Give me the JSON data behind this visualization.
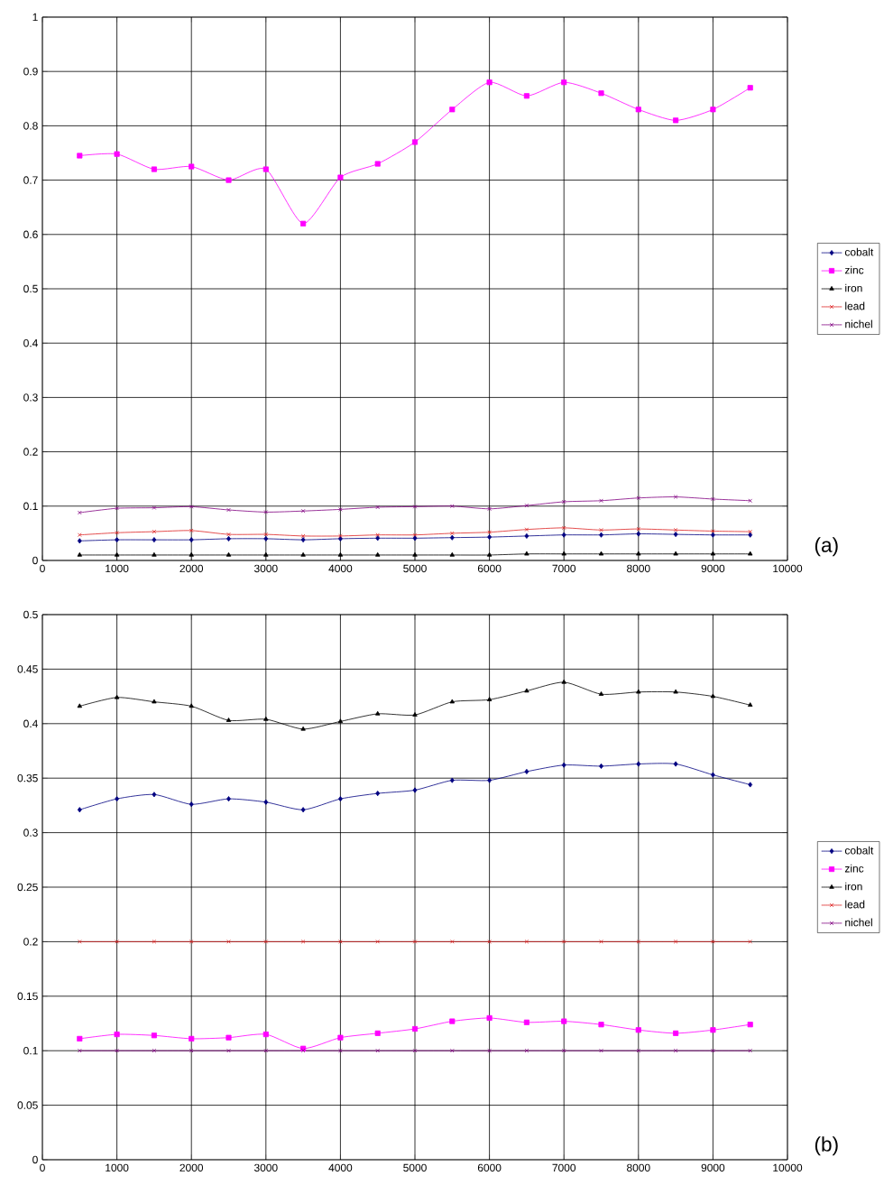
{
  "chart_data": [
    {
      "type": "line",
      "x": [
        500,
        1000,
        1500,
        2000,
        2500,
        3000,
        3500,
        4000,
        4500,
        5000,
        5500,
        6000,
        6500,
        7000,
        7500,
        8000,
        8500,
        9000,
        9500
      ],
      "xlim": [
        0,
        10000
      ],
      "xticks": [
        0,
        1000,
        2000,
        3000,
        4000,
        5000,
        6000,
        7000,
        8000,
        9000,
        10000
      ],
      "ylim": [
        0,
        1
      ],
      "yticks": [
        0,
        0.1,
        0.2,
        0.3,
        0.4,
        0.5,
        0.6,
        0.7,
        0.8,
        0.9,
        1
      ],
      "grid": true,
      "legend": "right",
      "annotations": [
        "(a)"
      ],
      "series": [
        {
          "name": "cobalt",
          "color": "#000080",
          "marker": "diamond",
          "values": [
            0.036,
            0.038,
            0.038,
            0.038,
            0.04,
            0.04,
            0.038,
            0.04,
            0.041,
            0.041,
            0.042,
            0.043,
            0.045,
            0.047,
            0.047,
            0.049,
            0.048,
            0.047,
            0.047
          ]
        },
        {
          "name": "zinc",
          "color": "#ff00ff",
          "marker": "square",
          "values": [
            0.745,
            0.748,
            0.72,
            0.725,
            0.7,
            0.72,
            0.62,
            0.705,
            0.73,
            0.77,
            0.83,
            0.88,
            0.855,
            0.88,
            0.86,
            0.83,
            0.81,
            0.83,
            0.87
          ]
        },
        {
          "name": "iron",
          "color": "#000000",
          "marker": "triangle",
          "values": [
            0.01,
            0.01,
            0.01,
            0.01,
            0.01,
            0.01,
            0.01,
            0.01,
            0.01,
            0.01,
            0.01,
            0.01,
            0.012,
            0.012,
            0.012,
            0.012,
            0.012,
            0.012,
            0.012
          ]
        },
        {
          "name": "lead",
          "color": "#dd2222",
          "marker": "cross",
          "values": [
            0.047,
            0.051,
            0.053,
            0.055,
            0.048,
            0.048,
            0.045,
            0.045,
            0.047,
            0.047,
            0.05,
            0.052,
            0.057,
            0.06,
            0.056,
            0.058,
            0.056,
            0.054,
            0.053
          ]
        },
        {
          "name": "nichel",
          "color": "#800080",
          "marker": "cross",
          "values": [
            0.088,
            0.096,
            0.097,
            0.099,
            0.093,
            0.089,
            0.091,
            0.094,
            0.098,
            0.099,
            0.1,
            0.095,
            0.101,
            0.108,
            0.11,
            0.115,
            0.117,
            0.113,
            0.11
          ]
        }
      ]
    },
    {
      "type": "line",
      "x": [
        500,
        1000,
        1500,
        2000,
        2500,
        3000,
        3500,
        4000,
        4500,
        5000,
        5500,
        6000,
        6500,
        7000,
        7500,
        8000,
        8500,
        9000,
        9500
      ],
      "xlim": [
        0,
        10000
      ],
      "xticks": [
        0,
        1000,
        2000,
        3000,
        4000,
        5000,
        6000,
        7000,
        8000,
        9000,
        10000
      ],
      "ylim": [
        0,
        0.5
      ],
      "yticks": [
        0,
        0.05,
        0.1,
        0.15,
        0.2,
        0.25,
        0.3,
        0.35,
        0.4,
        0.45,
        0.5
      ],
      "grid": true,
      "legend": "right",
      "annotations": [
        "(b)"
      ],
      "series": [
        {
          "name": "cobalt",
          "color": "#000080",
          "marker": "diamond",
          "values": [
            0.321,
            0.331,
            0.335,
            0.326,
            0.331,
            0.328,
            0.321,
            0.331,
            0.336,
            0.339,
            0.348,
            0.348,
            0.356,
            0.362,
            0.361,
            0.363,
            0.363,
            0.353,
            0.344
          ]
        },
        {
          "name": "zinc",
          "color": "#ff00ff",
          "marker": "square",
          "values": [
            0.111,
            0.115,
            0.114,
            0.111,
            0.112,
            0.115,
            0.102,
            0.112,
            0.116,
            0.12,
            0.127,
            0.13,
            0.126,
            0.127,
            0.124,
            0.119,
            0.116,
            0.119,
            0.124
          ]
        },
        {
          "name": "iron",
          "color": "#000000",
          "marker": "triangle",
          "values": [
            0.416,
            0.424,
            0.42,
            0.416,
            0.403,
            0.404,
            0.395,
            0.402,
            0.409,
            0.408,
            0.42,
            0.422,
            0.43,
            0.438,
            0.427,
            0.429,
            0.429,
            0.425,
            0.417
          ]
        },
        {
          "name": "lead",
          "color": "#dd2222",
          "marker": "cross",
          "values": [
            0.2,
            0.2,
            0.2,
            0.2,
            0.2,
            0.2,
            0.2,
            0.2,
            0.2,
            0.2,
            0.2,
            0.2,
            0.2,
            0.2,
            0.2,
            0.2,
            0.2,
            0.2,
            0.2
          ]
        },
        {
          "name": "nichel",
          "color": "#800080",
          "marker": "cross",
          "values": [
            0.1,
            0.1,
            0.1,
            0.1,
            0.1,
            0.1,
            0.1,
            0.1,
            0.1,
            0.1,
            0.1,
            0.1,
            0.1,
            0.1,
            0.1,
            0.1,
            0.1,
            0.1,
            0.1
          ]
        }
      ]
    }
  ]
}
